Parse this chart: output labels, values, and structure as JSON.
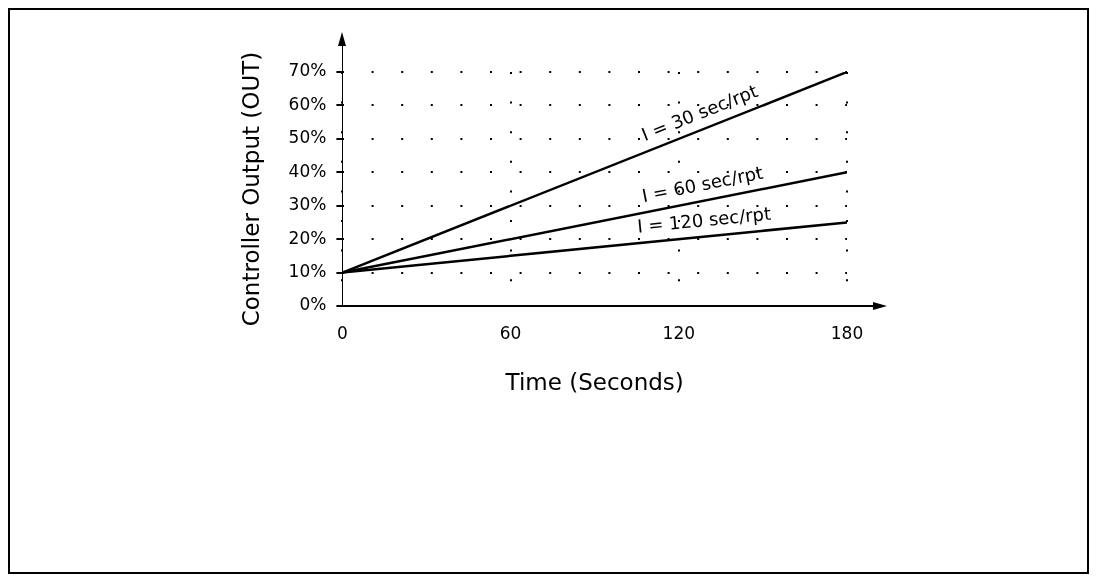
{
  "chart_data": {
    "type": "line",
    "xlabel": "Time (Seconds)",
    "ylabel": "Controller Output (OUT)",
    "x": [
      0,
      180
    ],
    "series": [
      {
        "name": "I = 30 sec/rpt",
        "color": "#000000",
        "values": [
          10,
          70
        ]
      },
      {
        "name": "I = 60 sec/rpt",
        "color": "#000000",
        "values": [
          10,
          40
        ]
      },
      {
        "name": "I = 120 sec/rpt",
        "color": "#000000",
        "values": [
          10,
          25
        ]
      }
    ],
    "xlim": [
      0,
      180
    ],
    "xticks": [
      0,
      60,
      120,
      180
    ],
    "ylim": [
      0,
      70
    ],
    "yticks": [
      {
        "value": 0,
        "label": "0%"
      },
      {
        "value": 10,
        "label": "10%"
      },
      {
        "value": 20,
        "label": "20%"
      },
      {
        "value": 30,
        "label": "30%"
      },
      {
        "value": 40,
        "label": "40%"
      },
      {
        "value": 50,
        "label": "50%"
      },
      {
        "value": 60,
        "label": "60%"
      },
      {
        "value": 70,
        "label": "70%"
      }
    ],
    "grid": true,
    "legend": false,
    "marker": "none",
    "line_style": "solid"
  }
}
